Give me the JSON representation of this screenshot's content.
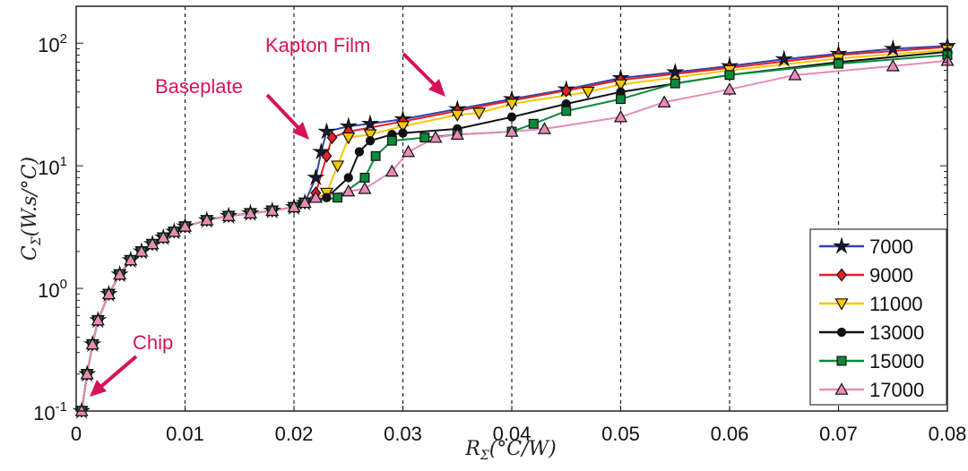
{
  "chart_data": {
    "type": "line",
    "title": "",
    "xlabel": "R_Σ(°C/W)",
    "ylabel": "C_Σ(W.s/°C)",
    "xlabel_parts": {
      "main": "R",
      "sub": "Σ",
      "rest": "(°C/W)"
    },
    "ylabel_parts": {
      "main": "C",
      "sub": "Σ",
      "rest": "(W.s/°C)"
    },
    "xlim": [
      0,
      0.08
    ],
    "ylim": [
      0.1,
      200
    ],
    "yscale": "log",
    "grid": "vertical dashed",
    "legend_position": "bottom-right",
    "x_ticks": [
      "0",
      "0.01",
      "0.02",
      "0.03",
      "0.04",
      "0.05",
      "0.06",
      "0.07",
      "0.08"
    ],
    "y_ticks": [
      {
        "base": "10",
        "exp": "-1"
      },
      {
        "base": "10",
        "exp": "0"
      },
      {
        "base": "10",
        "exp": "1"
      },
      {
        "base": "10",
        "exp": "2"
      }
    ],
    "annotations": [
      {
        "text": "Kapton Film",
        "color": "#d6135a"
      },
      {
        "text": "Baseplate",
        "color": "#d6135a"
      },
      {
        "text": "Chip",
        "color": "#d6135a"
      }
    ],
    "common_start": [
      [
        0.0005,
        0.1
      ],
      [
        0.001,
        0.2
      ],
      [
        0.0015,
        0.35
      ],
      [
        0.002,
        0.55
      ],
      [
        0.003,
        0.9
      ],
      [
        0.004,
        1.3
      ],
      [
        0.005,
        1.7
      ],
      [
        0.006,
        2.0
      ],
      [
        0.007,
        2.3
      ],
      [
        0.008,
        2.6
      ],
      [
        0.009,
        2.9
      ],
      [
        0.01,
        3.2
      ],
      [
        0.012,
        3.6
      ],
      [
        0.014,
        3.9
      ],
      [
        0.016,
        4.1
      ],
      [
        0.018,
        4.3
      ],
      [
        0.02,
        4.6
      ],
      [
        0.021,
        5.0
      ]
    ],
    "series": [
      {
        "name": "7000",
        "color": "#3344aa",
        "marker": "star",
        "points": [
          [
            0.022,
            8
          ],
          [
            0.0225,
            13
          ],
          [
            0.023,
            19
          ],
          [
            0.025,
            21
          ],
          [
            0.027,
            22
          ],
          [
            0.03,
            24
          ],
          [
            0.035,
            29
          ],
          [
            0.04,
            35
          ],
          [
            0.045,
            42
          ],
          [
            0.05,
            52
          ],
          [
            0.055,
            58
          ],
          [
            0.06,
            65
          ],
          [
            0.065,
            74
          ],
          [
            0.07,
            82
          ],
          [
            0.075,
            90
          ],
          [
            0.08,
            95
          ]
        ]
      },
      {
        "name": "9000",
        "color": "#e8202a",
        "marker": "diamond",
        "points": [
          [
            0.022,
            6
          ],
          [
            0.023,
            12
          ],
          [
            0.0235,
            17
          ],
          [
            0.025,
            19
          ],
          [
            0.03,
            23
          ],
          [
            0.035,
            28
          ],
          [
            0.04,
            34
          ],
          [
            0.045,
            41
          ],
          [
            0.05,
            50
          ],
          [
            0.06,
            63
          ],
          [
            0.07,
            80
          ],
          [
            0.08,
            93
          ]
        ]
      },
      {
        "name": "11000",
        "color": "#f5c800",
        "marker": "triangle-down",
        "points": [
          [
            0.023,
            6
          ],
          [
            0.024,
            10
          ],
          [
            0.025,
            17
          ],
          [
            0.027,
            18
          ],
          [
            0.03,
            21
          ],
          [
            0.035,
            26
          ],
          [
            0.037,
            27
          ],
          [
            0.04,
            32
          ],
          [
            0.047,
            40
          ],
          [
            0.05,
            46
          ],
          [
            0.06,
            60
          ],
          [
            0.07,
            75
          ],
          [
            0.08,
            88
          ]
        ]
      },
      {
        "name": "13000",
        "color": "#111111",
        "marker": "circle",
        "points": [
          [
            0.023,
            5.5
          ],
          [
            0.025,
            8
          ],
          [
            0.026,
            13
          ],
          [
            0.027,
            16
          ],
          [
            0.029,
            18
          ],
          [
            0.03,
            18.5
          ],
          [
            0.035,
            20
          ],
          [
            0.04,
            25
          ],
          [
            0.045,
            32
          ],
          [
            0.05,
            40
          ],
          [
            0.06,
            55
          ],
          [
            0.07,
            70
          ],
          [
            0.08,
            85
          ]
        ]
      },
      {
        "name": "15000",
        "color": "#0a8a3a",
        "marker": "square",
        "points": [
          [
            0.024,
            5.5
          ],
          [
            0.0265,
            8
          ],
          [
            0.0275,
            12
          ],
          [
            0.029,
            16
          ],
          [
            0.032,
            17
          ],
          [
            0.035,
            18
          ],
          [
            0.04,
            19
          ],
          [
            0.042,
            22
          ],
          [
            0.045,
            28
          ],
          [
            0.05,
            35
          ],
          [
            0.055,
            47
          ],
          [
            0.06,
            55
          ],
          [
            0.07,
            68
          ],
          [
            0.08,
            80
          ]
        ]
      },
      {
        "name": "17000",
        "color": "#e88bb8",
        "marker": "triangle-up",
        "points": [
          [
            0.022,
            5.5
          ],
          [
            0.025,
            6.2
          ],
          [
            0.0265,
            6.5
          ],
          [
            0.029,
            9
          ],
          [
            0.0305,
            13
          ],
          [
            0.033,
            17
          ],
          [
            0.035,
            18
          ],
          [
            0.04,
            19
          ],
          [
            0.043,
            20
          ],
          [
            0.05,
            25
          ],
          [
            0.054,
            33
          ],
          [
            0.06,
            42
          ],
          [
            0.066,
            55
          ],
          [
            0.075,
            65
          ],
          [
            0.08,
            72
          ]
        ]
      }
    ]
  }
}
